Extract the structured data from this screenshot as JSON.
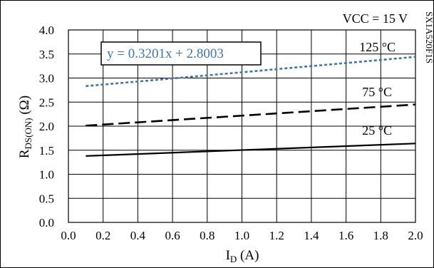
{
  "chart_data": {
    "type": "line",
    "title": "",
    "xlabel_main": "I",
    "xlabel_sub": "D",
    "xlabel_unit": " (A)",
    "ylabel_main": "R",
    "ylabel_sub": "DS(ON)",
    "ylabel_unit": " (Ω)",
    "xlim": [
      0.0,
      2.0
    ],
    "ylim": [
      0.0,
      4.0
    ],
    "x_ticks": [
      "0.0",
      "0.2",
      "0.4",
      "0.6",
      "0.8",
      "1.0",
      "1.2",
      "1.4",
      "1.6",
      "1.8",
      "2.0"
    ],
    "y_ticks": [
      "0.0",
      "0.5",
      "1.0",
      "1.5",
      "2.0",
      "2.5",
      "3.0",
      "3.5",
      "4.0"
    ],
    "grid": true,
    "series": [
      {
        "name": "125 °C",
        "x": [
          0.1,
          2.0
        ],
        "y": [
          2.8323,
          3.4405
        ],
        "color": "#3d74b7",
        "style": "dotted"
      },
      {
        "name": "75 °C",
        "x": [
          0.1,
          2.0
        ],
        "y": [
          2.01,
          2.45
        ],
        "color": "#000000",
        "style": "dashed"
      },
      {
        "name": "25 °C",
        "x": [
          0.1,
          2.0
        ],
        "y": [
          1.38,
          1.64
        ],
        "color": "#000000",
        "style": "solid"
      }
    ],
    "annotations": {
      "vcc": "VCC = 15 V",
      "equation": "y = 0.3201x + 2.8003",
      "side_code": "SX1A520F1S"
    }
  }
}
